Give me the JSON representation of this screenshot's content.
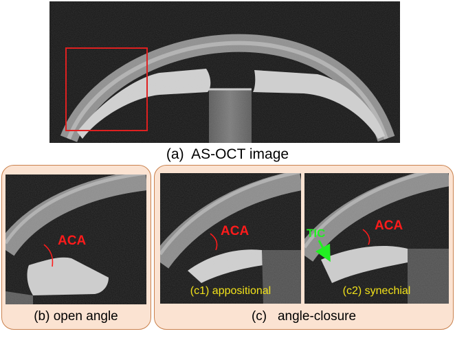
{
  "panel_a": {
    "caption": "(a)  AS-OCT image"
  },
  "panel_b": {
    "caption": "(b) open angle",
    "aca_label": "ACA"
  },
  "panel_c": {
    "caption": "(c)   angle-closure",
    "c1": {
      "label": "(c1) appositional",
      "aca_label": "ACA"
    },
    "c2": {
      "label": "(c2) synechial",
      "aca_label": "ACA",
      "tic_label": "TIC"
    }
  },
  "colors": {
    "frame_fill": "#fbe3d2",
    "frame_border": "#c9804c",
    "aca_red": "#ff1b1b",
    "tic_green": "#22ee22",
    "label_yellow": "#f2e21a",
    "roi_box": "#e02020"
  }
}
